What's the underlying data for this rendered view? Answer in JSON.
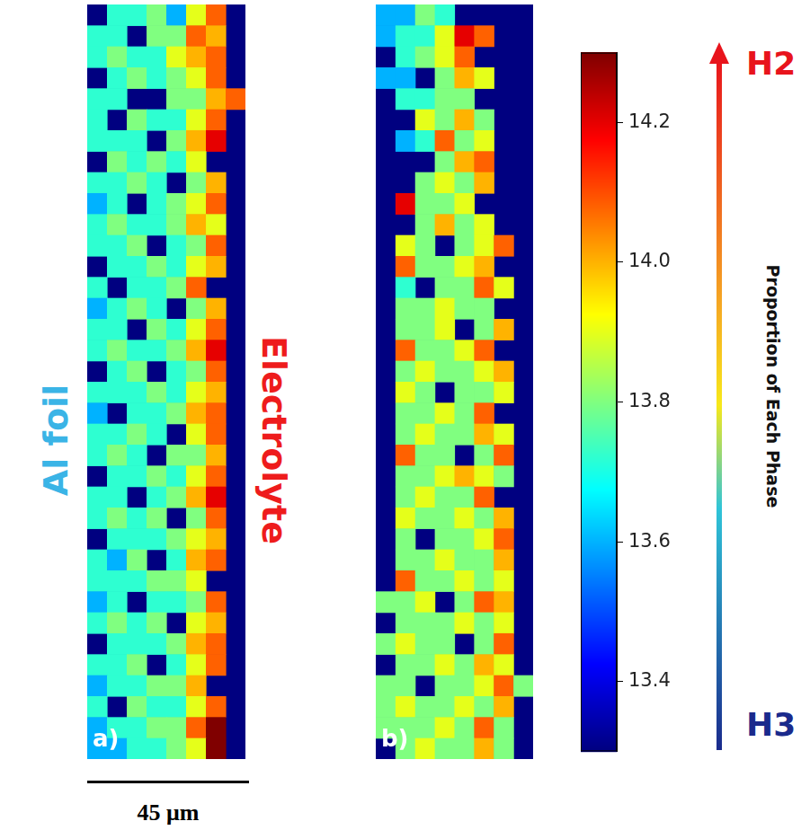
{
  "chart_data": [
    {
      "type": "heatmap",
      "panel_label": "a)",
      "tick_labels": false,
      "cells": [
        [
          null,
          13.72,
          13.72,
          13.8,
          13.6,
          13.9,
          14.08,
          null
        ],
        [
          13.72,
          13.72,
          null,
          13.8,
          13.8,
          14.08,
          14.0,
          null
        ],
        [
          13.72,
          13.8,
          13.72,
          13.72,
          13.9,
          14.0,
          14.08,
          null
        ],
        [
          null,
          13.72,
          13.8,
          13.72,
          13.8,
          13.9,
          14.08,
          null
        ],
        [
          13.72,
          13.72,
          null,
          null,
          13.8,
          13.8,
          14.0,
          14.08
        ],
        [
          13.72,
          null,
          13.8,
          13.72,
          13.72,
          13.9,
          14.08,
          null
        ],
        [
          13.72,
          13.72,
          13.72,
          null,
          13.8,
          14.0,
          14.2,
          null
        ],
        [
          null,
          13.8,
          13.72,
          13.8,
          13.72,
          13.9,
          null,
          null
        ],
        [
          13.72,
          13.72,
          13.8,
          13.72,
          null,
          13.8,
          14.0,
          null
        ],
        [
          13.6,
          13.72,
          null,
          13.72,
          13.8,
          13.9,
          14.08,
          null
        ],
        [
          13.72,
          13.8,
          13.72,
          13.72,
          13.8,
          14.0,
          13.9,
          null
        ],
        [
          13.72,
          13.72,
          13.8,
          null,
          13.72,
          13.8,
          14.08,
          null
        ],
        [
          null,
          13.72,
          13.72,
          13.8,
          13.72,
          13.9,
          14.0,
          null
        ],
        [
          13.72,
          null,
          13.72,
          13.72,
          13.8,
          14.08,
          null,
          null
        ],
        [
          13.6,
          13.72,
          13.8,
          13.72,
          null,
          13.8,
          14.0,
          null
        ],
        [
          13.72,
          13.72,
          null,
          13.8,
          13.72,
          13.9,
          14.08,
          null
        ],
        [
          13.72,
          13.8,
          13.72,
          13.72,
          13.8,
          14.0,
          14.2,
          null
        ],
        [
          null,
          13.72,
          13.8,
          null,
          13.72,
          13.8,
          14.08,
          null
        ],
        [
          13.72,
          13.72,
          13.72,
          13.8,
          13.72,
          13.9,
          14.0,
          null
        ],
        [
          13.6,
          null,
          13.72,
          13.72,
          13.8,
          14.0,
          14.08,
          null
        ],
        [
          13.72,
          13.72,
          13.8,
          13.72,
          null,
          13.9,
          14.08,
          null
        ],
        [
          13.72,
          13.8,
          13.72,
          null,
          13.8,
          13.8,
          14.0,
          null
        ],
        [
          null,
          13.72,
          13.72,
          13.8,
          13.72,
          13.9,
          14.08,
          null
        ],
        [
          13.72,
          13.72,
          null,
          13.72,
          13.8,
          14.0,
          14.2,
          null
        ],
        [
          13.72,
          13.8,
          13.72,
          13.8,
          null,
          13.8,
          14.08,
          null
        ],
        [
          null,
          13.72,
          13.72,
          13.72,
          13.8,
          13.9,
          14.0,
          null
        ],
        [
          13.72,
          13.6,
          13.8,
          null,
          13.72,
          14.0,
          14.08,
          null
        ],
        [
          13.72,
          13.72,
          13.72,
          13.8,
          13.8,
          13.9,
          null,
          null
        ],
        [
          13.6,
          13.72,
          null,
          13.72,
          13.72,
          13.8,
          14.08,
          null
        ],
        [
          13.72,
          13.8,
          13.72,
          13.8,
          null,
          13.9,
          14.0,
          null
        ],
        [
          null,
          13.72,
          13.72,
          13.72,
          13.8,
          14.0,
          14.08,
          null
        ],
        [
          13.72,
          13.72,
          13.8,
          null,
          13.72,
          13.9,
          14.08,
          null
        ],
        [
          13.6,
          13.72,
          13.72,
          13.8,
          13.8,
          14.0,
          null,
          null
        ],
        [
          13.72,
          null,
          13.8,
          13.72,
          13.72,
          13.9,
          14.08,
          null
        ],
        [
          13.6,
          13.72,
          13.72,
          13.8,
          13.8,
          14.08,
          14.3,
          null
        ],
        [
          13.6,
          13.6,
          13.72,
          13.72,
          13.8,
          13.9,
          14.3,
          null
        ]
      ]
    },
    {
      "type": "heatmap",
      "panel_label": "b)",
      "tick_labels": false,
      "cells": [
        [
          13.6,
          13.6,
          13.8,
          13.72,
          null,
          null,
          null,
          null
        ],
        [
          13.6,
          13.72,
          13.72,
          13.9,
          14.2,
          14.08,
          null,
          null
        ],
        [
          null,
          13.72,
          13.8,
          13.9,
          14.08,
          null,
          null,
          null
        ],
        [
          13.6,
          13.6,
          null,
          13.8,
          14.0,
          13.9,
          null,
          null
        ],
        [
          null,
          13.72,
          13.72,
          13.8,
          13.8,
          null,
          null,
          null
        ],
        [
          null,
          null,
          13.9,
          13.8,
          14.0,
          13.8,
          null,
          null
        ],
        [
          null,
          13.6,
          13.72,
          14.08,
          13.8,
          13.9,
          null,
          null
        ],
        [
          null,
          null,
          null,
          13.8,
          14.0,
          14.08,
          null,
          null
        ],
        [
          null,
          null,
          13.8,
          13.9,
          13.8,
          14.0,
          null,
          null
        ],
        [
          null,
          14.2,
          13.8,
          13.8,
          13.9,
          null,
          null,
          null
        ],
        [
          null,
          null,
          13.8,
          14.0,
          13.8,
          13.9,
          null,
          null
        ],
        [
          null,
          13.9,
          13.8,
          null,
          13.8,
          13.9,
          14.08,
          null
        ],
        [
          null,
          14.08,
          13.8,
          13.8,
          13.9,
          14.0,
          null,
          null
        ],
        [
          null,
          13.72,
          null,
          13.8,
          13.8,
          14.08,
          13.9,
          null
        ],
        [
          null,
          13.8,
          13.8,
          13.9,
          13.8,
          13.8,
          null,
          null
        ],
        [
          null,
          13.8,
          13.8,
          13.9,
          null,
          13.8,
          14.0,
          null
        ],
        [
          null,
          14.08,
          13.8,
          13.8,
          13.9,
          14.08,
          null,
          null
        ],
        [
          null,
          13.8,
          13.9,
          13.8,
          13.8,
          13.9,
          14.0,
          null
        ],
        [
          null,
          13.9,
          13.8,
          null,
          13.8,
          13.8,
          13.9,
          null
        ],
        [
          null,
          13.8,
          13.8,
          13.9,
          13.8,
          14.08,
          null,
          null
        ],
        [
          null,
          13.8,
          13.9,
          13.8,
          13.8,
          14.0,
          13.9,
          null
        ],
        [
          null,
          14.08,
          13.8,
          13.8,
          null,
          13.8,
          14.08,
          null
        ],
        [
          null,
          13.8,
          13.8,
          13.9,
          14.0,
          13.9,
          13.8,
          null
        ],
        [
          null,
          13.8,
          13.9,
          13.8,
          13.8,
          14.08,
          null,
          null
        ],
        [
          null,
          13.9,
          13.8,
          13.8,
          13.9,
          13.8,
          14.0,
          null
        ],
        [
          null,
          13.8,
          null,
          13.8,
          13.8,
          13.9,
          14.08,
          null
        ],
        [
          null,
          13.8,
          13.8,
          13.9,
          13.8,
          13.8,
          14.0,
          null
        ],
        [
          null,
          14.08,
          13.8,
          13.8,
          13.9,
          13.8,
          13.9,
          null
        ],
        [
          13.8,
          13.8,
          13.9,
          null,
          13.8,
          14.08,
          14.0,
          null
        ],
        [
          null,
          13.8,
          13.8,
          13.8,
          13.9,
          13.8,
          13.9,
          null
        ],
        [
          13.8,
          13.9,
          13.8,
          13.8,
          null,
          13.8,
          14.08,
          null
        ],
        [
          null,
          13.8,
          13.8,
          13.9,
          13.8,
          14.0,
          13.9,
          null
        ],
        [
          13.8,
          13.8,
          null,
          13.8,
          13.8,
          13.9,
          14.08,
          13.8
        ],
        [
          13.8,
          13.9,
          13.8,
          13.8,
          13.9,
          13.8,
          14.0,
          null
        ],
        [
          13.8,
          13.8,
          13.8,
          13.9,
          13.8,
          14.08,
          13.8,
          null
        ],
        [
          null,
          13.8,
          13.9,
          13.8,
          13.8,
          14.0,
          13.8,
          null
        ]
      ]
    },
    {
      "type": "colorbar",
      "ylim": [
        13.3,
        14.3
      ],
      "yticks": [
        13.4,
        13.6,
        13.8,
        {
          "value": 14,
          "label": "14.0"
        },
        14.2
      ],
      "label": "Proportion of Each Phase",
      "top_label": "H2",
      "bottom_label": "H3"
    }
  ],
  "annotations": {
    "left": "Al foil",
    "right": "Electrolyte",
    "scale_bar": "45 μm"
  }
}
